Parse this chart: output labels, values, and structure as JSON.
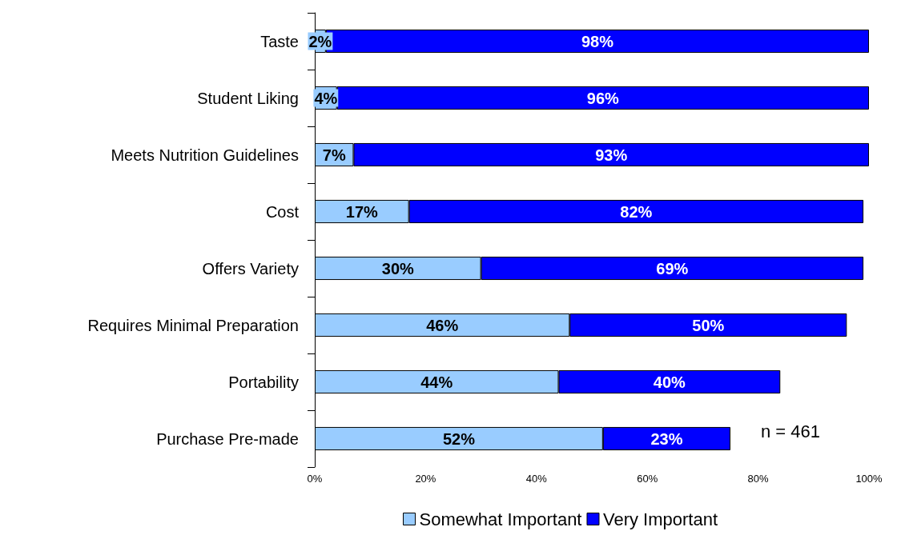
{
  "chart_data": {
    "type": "bar",
    "orientation": "horizontal",
    "stacked": true,
    "categories": [
      "Taste",
      "Student Liking",
      "Meets Nutrition Guidelines",
      "Cost",
      "Offers Variety",
      "Requires Minimal Preparation",
      "Portability",
      "Purchase Pre-made"
    ],
    "series": [
      {
        "name": "Somewhat Important",
        "color": "#99ccff",
        "values": [
          2,
          4,
          7,
          17,
          30,
          46,
          44,
          52
        ],
        "value_labels": [
          "2%",
          "4%",
          "7%",
          "17%",
          "30%",
          "46%",
          "44%",
          "52%"
        ]
      },
      {
        "name": "Very Important",
        "color": "#0000ff",
        "values": [
          98,
          96,
          93,
          82,
          69,
          50,
          40,
          23
        ],
        "value_labels": [
          "98%",
          "96%",
          "93%",
          "82%",
          "69%",
          "50%",
          "40%",
          "23%"
        ]
      }
    ],
    "xlim": [
      0,
      100
    ],
    "xticks": [
      {
        "value": 0,
        "label": "0%"
      },
      {
        "value": 20,
        "label": "20%"
      },
      {
        "value": 40,
        "label": "40%"
      },
      {
        "value": 60,
        "label": "60%"
      },
      {
        "value": 80,
        "label": "80%"
      },
      {
        "value": 100,
        "label": "100%"
      }
    ],
    "grid": false,
    "legend": "bottom",
    "annotations": [
      "n = 461"
    ]
  }
}
